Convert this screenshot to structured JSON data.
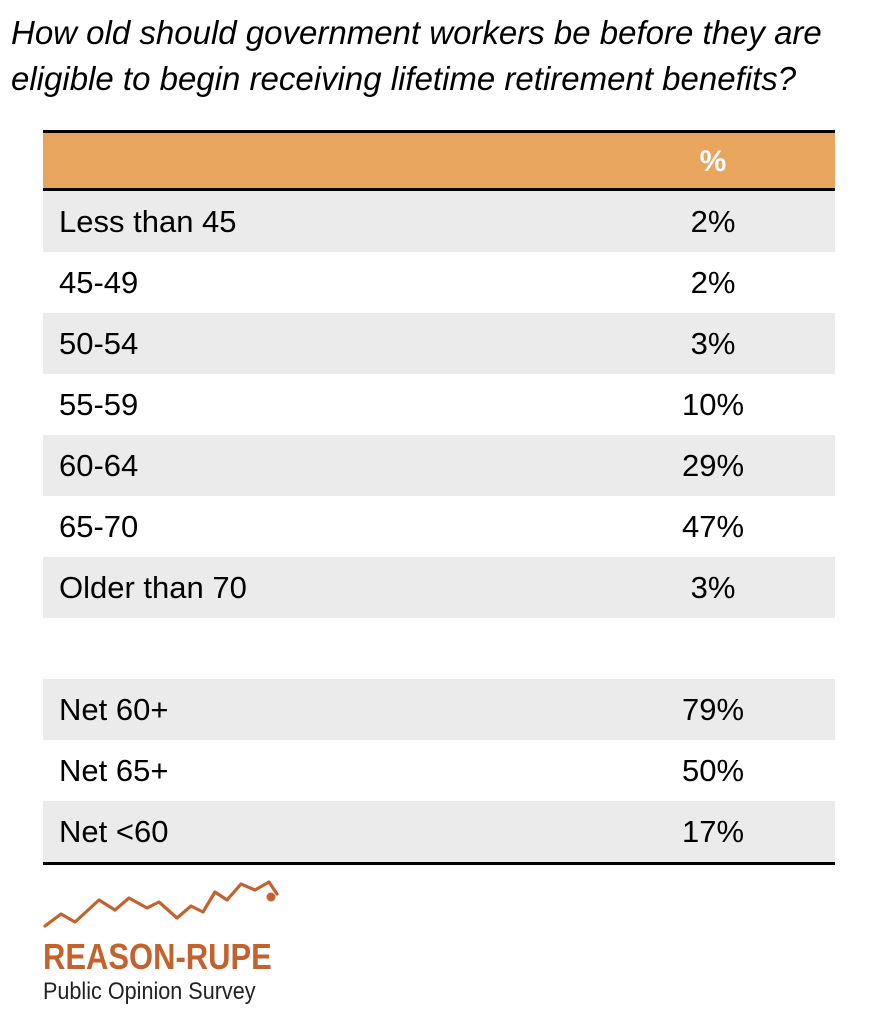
{
  "title_lines": [
    "How old should government workers be before they are",
    "eligible to begin receiving lifetime retirement benefits?"
  ],
  "chart_data": {
    "type": "table",
    "title": "How old should government workers be before they are eligible to begin receiving lifetime retirement benefits?",
    "column_header": "%",
    "rows": [
      {
        "label": "Less than 45",
        "value": "2%"
      },
      {
        "label": "45-49",
        "value": "2%"
      },
      {
        "label": "50-54",
        "value": "3%"
      },
      {
        "label": "55-59",
        "value": "10%"
      },
      {
        "label": "60-64",
        "value": "29%"
      },
      {
        "label": "65-70",
        "value": "47%"
      },
      {
        "label": "Older than 70",
        "value": "3%"
      }
    ],
    "net_rows": [
      {
        "label": "Net 60+",
        "value": "79%"
      },
      {
        "label": "Net 65+",
        "value": "50%"
      },
      {
        "label": "Net <60",
        "value": "17%"
      }
    ]
  },
  "logo": {
    "name": "REASON-RUPE",
    "subtitle": "Public Opinion Survey"
  },
  "colors": {
    "header_fill": "#e8a55e",
    "row_shade": "#ebebeb",
    "logo_accent": "#c4622d"
  }
}
